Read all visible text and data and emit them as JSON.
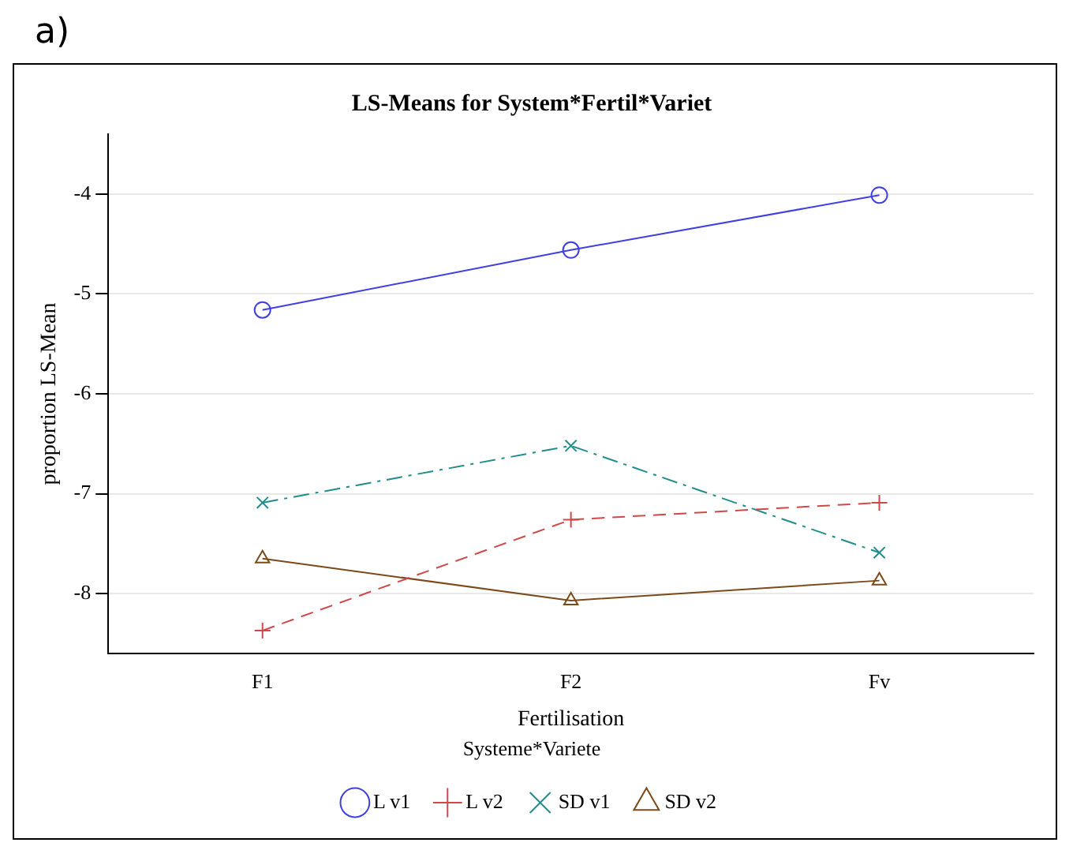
{
  "chart_data": {
    "type": "line",
    "title": "LS-Means for System*Fertil*Variet",
    "xlabel": "Fertilisation",
    "ylabel": "proportion LS-Mean",
    "legend_title": "Systeme*Variete",
    "annotations": [
      "a)"
    ],
    "categories": [
      "F1",
      "F2",
      "Fv"
    ],
    "series": [
      {
        "name": "L v1",
        "color": "#4040e0",
        "values": [
          -5.16,
          -4.56,
          -4.01
        ],
        "marker": "circle",
        "line_style": "solid"
      },
      {
        "name": "L v2",
        "color": "#d04848",
        "values": [
          -8.37,
          -7.26,
          -7.09
        ],
        "marker": "cross",
        "line_style": "dashed"
      },
      {
        "name": "SD v1",
        "color": "#208c8c",
        "values": [
          -7.09,
          -6.52,
          -7.59
        ],
        "marker": "x",
        "line_style": "dashdot"
      },
      {
        "name": "SD v2",
        "color": "#7a4a1a",
        "values": [
          -7.65,
          -8.07,
          -7.87
        ],
        "marker": "triangle",
        "line_style": "solid"
      }
    ],
    "ylim": [
      -8.6,
      -3.4
    ],
    "yticks": [
      -8,
      -7,
      -6,
      -5,
      -4
    ],
    "grid": "y",
    "legend": "bottom"
  }
}
